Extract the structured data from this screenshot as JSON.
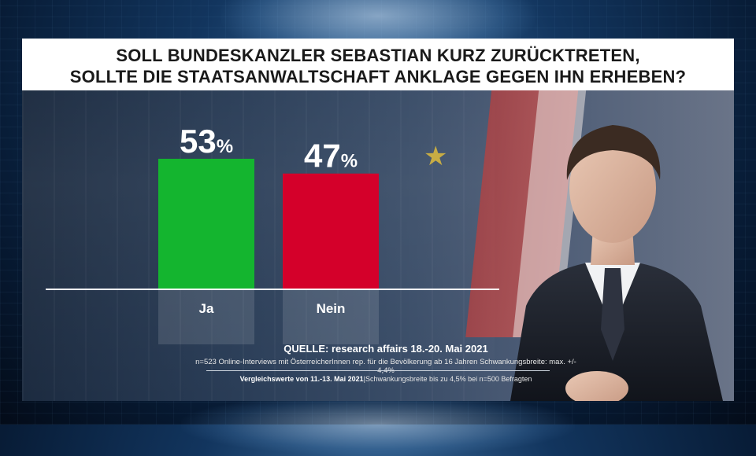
{
  "title": {
    "line1": "SOLL BUNDESKANZLER SEBASTIAN KURZ ZURÜCKTRETEN,",
    "line2": "SOLLTE DIE STAATSANWALTSCHAFT ANKLAGE GEGEN IHN ERHEBEN?"
  },
  "chart_data": {
    "type": "bar",
    "title": "SOLL BUNDESKANZLER SEBASTIAN KURZ ZURÜCKTRETEN, SOLLTE DIE STAATSANWALTSCHAFT ANKLAGE GEGEN IHN ERHEBEN?",
    "categories": [
      "Ja",
      "Nein"
    ],
    "values": [
      53,
      47
    ],
    "value_labels": [
      "53",
      "47"
    ],
    "unit": "%",
    "colors": [
      "#14b52f",
      "#d4002a"
    ],
    "ylim": [
      0,
      60
    ],
    "grid": false,
    "legend": "none"
  },
  "source": {
    "line1": "QUELLE: research affairs 18.-20. Mai 2021",
    "line2": "n=523 Online-Interviews mit ÖsterreicherInnen rep. für die Bevölkerung ab 16 Jahren  Schwankungsbreite: max. +/- 4,4%",
    "compare_label": "Vergleichswerte von  11.-13. Mai 2021",
    "compare_detail": "|Schwankungsbreite bis zu 4,5% bei n=500 Befragten"
  }
}
